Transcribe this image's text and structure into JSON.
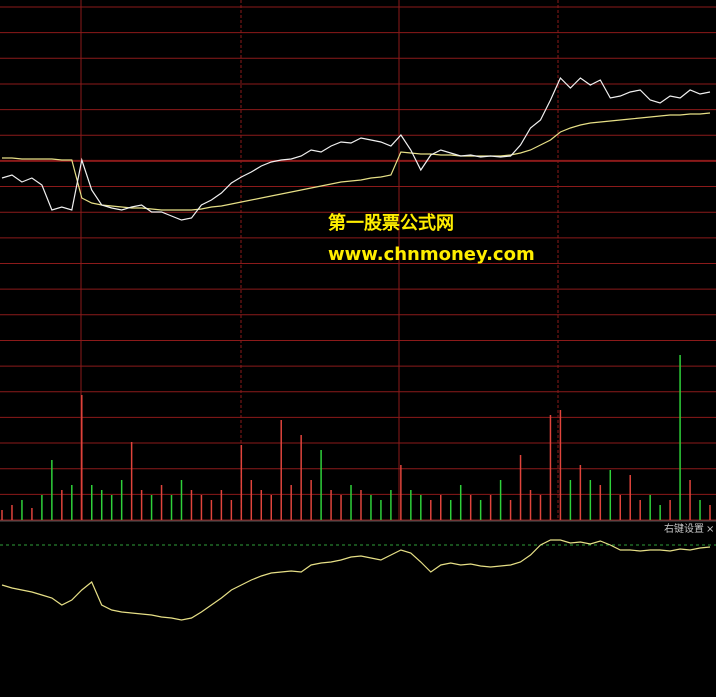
{
  "chart_data": {
    "type": "intraday",
    "x": [
      0,
      1,
      2,
      3,
      4,
      5,
      6,
      7,
      8,
      9,
      10,
      11,
      12,
      13,
      14,
      15,
      16,
      17,
      18,
      19,
      20,
      21,
      22,
      23,
      24,
      25,
      26,
      27,
      28,
      29,
      30,
      31,
      32,
      33,
      34,
      35,
      36,
      37,
      38,
      39,
      40,
      41,
      42,
      43,
      44,
      45,
      46,
      47,
      48,
      49,
      50,
      51,
      52,
      53,
      54,
      55,
      56,
      57,
      58,
      59,
      60,
      61,
      62,
      63,
      64,
      65,
      66,
      67,
      68,
      69,
      70,
      71
    ],
    "xlim": [
      0,
      71
    ],
    "ylim": [
      0,
      240
    ],
    "series": [
      {
        "color": "#f0f0f0",
        "values": [
          62,
          65,
          58,
          62,
          55,
          30,
          33,
          30,
          80,
          50,
          35,
          32,
          30,
          33,
          35,
          28,
          28,
          24,
          20,
          22,
          35,
          40,
          47,
          57,
          63,
          68,
          74,
          78,
          80,
          81,
          84,
          90,
          88,
          94,
          98,
          97,
          102,
          100,
          98,
          94,
          105,
          90,
          70,
          85,
          90,
          87,
          84,
          85,
          83,
          84,
          83,
          84,
          95,
          112,
          120,
          140,
          162,
          152,
          162,
          155,
          160,
          142,
          144,
          148,
          150,
          140,
          137,
          144,
          142,
          150,
          146,
          148
        ]
      },
      {
        "color": "#e6df86",
        "values": [
          82,
          82,
          81,
          81,
          81,
          81,
          80,
          80,
          42,
          37,
          35,
          34,
          33,
          32,
          32,
          31,
          30,
          30,
          30,
          30,
          31,
          33,
          34,
          36,
          38,
          40,
          42,
          44,
          46,
          48,
          50,
          52,
          54,
          56,
          58,
          59,
          60,
          62,
          63,
          65,
          88,
          87,
          86,
          86,
          85,
          85,
          84,
          84,
          84,
          84,
          84,
          85,
          87,
          90,
          95,
          100,
          108,
          112,
          115,
          117,
          118,
          119,
          120,
          121,
          122,
          123,
          124,
          125,
          125,
          126,
          126,
          127
        ]
      }
    ],
    "volume": {
      "ylim": [
        0,
        170
      ],
      "up_color": "#e0443c",
      "down_color": "#2fd13a",
      "values": [
        10,
        15,
        20,
        12,
        25,
        60,
        30,
        35,
        125,
        35,
        30,
        25,
        40,
        78,
        30,
        25,
        35,
        25,
        40,
        30,
        25,
        20,
        30,
        20,
        75,
        40,
        30,
        25,
        100,
        35,
        85,
        40,
        70,
        30,
        25,
        35,
        30,
        25,
        20,
        30,
        55,
        30,
        25,
        20,
        25,
        20,
        35,
        25,
        20,
        25,
        40,
        20,
        65,
        30,
        25,
        105,
        110,
        40,
        55,
        40,
        35,
        50,
        25,
        45,
        20,
        25,
        15,
        20,
        165,
        40,
        20,
        15
      ]
    },
    "indicator": {
      "ylim": [
        0,
        100
      ],
      "color": "#e6df86",
      "values": [
        55,
        52,
        50,
        48,
        45,
        42,
        35,
        40,
        50,
        58,
        35,
        30,
        28,
        27,
        26,
        25,
        23,
        22,
        20,
        22,
        28,
        35,
        42,
        50,
        55,
        60,
        64,
        67,
        68,
        69,
        68,
        75,
        77,
        78,
        80,
        83,
        84,
        82,
        80,
        85,
        90,
        87,
        78,
        68,
        75,
        77,
        75,
        76,
        74,
        73,
        74,
        75,
        78,
        85,
        95,
        100,
        100,
        97,
        98,
        96,
        99,
        95,
        90,
        90,
        89,
        90,
        90,
        89,
        91,
        90,
        92,
        93
      ]
    }
  },
  "watermark": {
    "title": "第一股票公式网",
    "url": "www.chnmoney.com"
  },
  "toolbar": {
    "label": "右键设置",
    "close": "×"
  }
}
